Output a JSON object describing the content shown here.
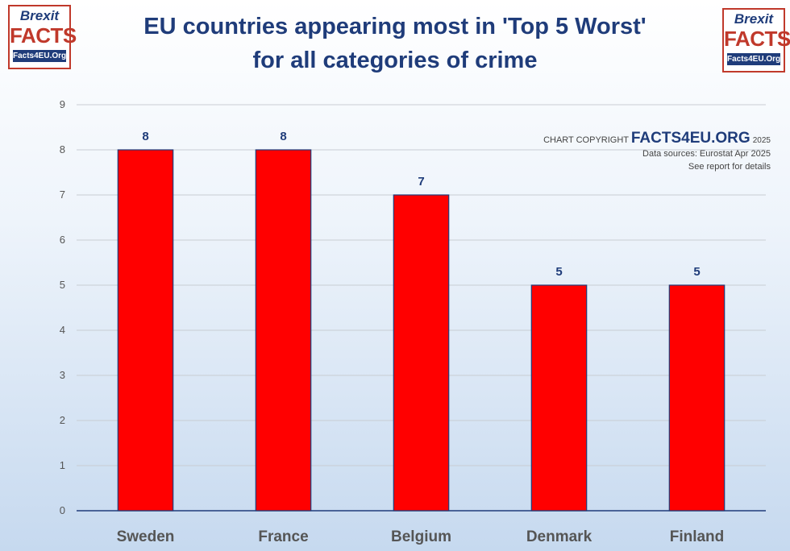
{
  "title_line1": "EU countries appearing most in 'Top 5 Worst'",
  "title_line2": "for all categories of crime",
  "logo": {
    "line1": "Brexit",
    "line2": "FACTS",
    "line3": "Facts4EU.Org"
  },
  "credit": {
    "prefix": "CHART COPYRIGHT",
    "brand": "FACTS4EU.ORG",
    "year": "2025",
    "line2": "Data sources: Eurostat Apr 2025",
    "line3": "See report for details"
  },
  "colors": {
    "bar": "#ff0000",
    "bar_border": "#1f3c7a",
    "title": "#1f3c7a",
    "grid": "#c8cdd3",
    "axis": "#1f3c7a",
    "label": "#555555"
  },
  "chart_data": {
    "type": "bar",
    "title": "EU countries appearing most in 'Top 5 Worst' for all categories of crime",
    "categories": [
      "Sweden",
      "France",
      "Belgium",
      "Denmark",
      "Finland"
    ],
    "values": [
      8,
      8,
      7,
      5,
      5
    ],
    "ylim": [
      0,
      9
    ],
    "yticks": [
      0,
      1,
      2,
      3,
      4,
      5,
      6,
      7,
      8,
      9
    ],
    "grid": true,
    "data_labels": true,
    "xlabel": "",
    "ylabel": ""
  }
}
